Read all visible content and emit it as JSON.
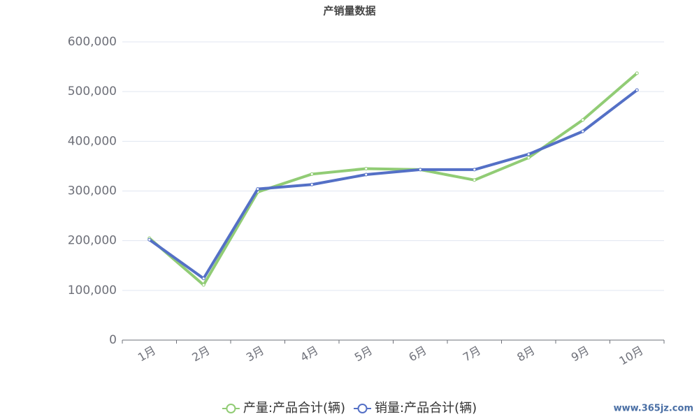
{
  "chart_data": {
    "type": "line",
    "title": "产销量数据",
    "categories": [
      "1月",
      "2月",
      "3月",
      "4月",
      "5月",
      "6月",
      "7月",
      "8月",
      "9月",
      "10月"
    ],
    "series": [
      {
        "name": "产量:产品合计(辆)",
        "color": "#91cc75",
        "values": [
          205000,
          111000,
          298000,
          334000,
          345000,
          343000,
          322000,
          367000,
          443000,
          537000
        ]
      },
      {
        "name": "销量:产品合计(辆)",
        "color": "#5470c6",
        "values": [
          202000,
          124000,
          304000,
          313000,
          333000,
          343000,
          343000,
          374000,
          420000,
          503000
        ]
      }
    ],
    "ylim": [
      0,
      600000
    ],
    "yticks": [
      0,
      {
        "value": 100000,
        "label": "100,000"
      },
      {
        "value": 200000,
        "label": "200,000"
      },
      {
        "value": 300000,
        "label": "300,000"
      },
      {
        "value": 400000,
        "label": "400,000"
      },
      {
        "value": 500000,
        "label": "500,000"
      },
      {
        "value": 600000,
        "label": "600,000"
      }
    ],
    "grid": true,
    "legend": "bottom",
    "watermark": "www.365jz.com"
  }
}
